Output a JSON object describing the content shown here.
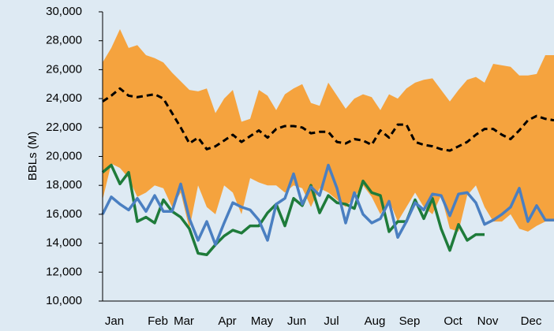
{
  "chart_data": {
    "type": "line",
    "y_label": "BBLs (M)",
    "categories": [
      null,
      "Jan",
      null,
      null,
      null,
      null,
      "Feb",
      null,
      null,
      "Mar",
      null,
      null,
      null,
      null,
      "Apr",
      null,
      null,
      null,
      "May",
      null,
      null,
      null,
      "Jun",
      null,
      null,
      null,
      "Jul",
      null,
      null,
      null,
      null,
      "Aug",
      null,
      null,
      null,
      "Sep",
      null,
      null,
      null,
      null,
      "Oct",
      null,
      null,
      null,
      "Nov",
      null,
      null,
      null,
      null,
      "Dec",
      null,
      null,
      null
    ],
    "band": {
      "color": "#f5a33e",
      "high": [
        26500,
        27500,
        28800,
        27500,
        27700,
        27000,
        26800,
        26500,
        25800,
        25200,
        24600,
        24500,
        24700,
        23000,
        24000,
        24600,
        22400,
        22600,
        24600,
        24200,
        23200,
        24300,
        24700,
        25000,
        23700,
        23500,
        25100,
        24200,
        23300,
        24000,
        24300,
        24100,
        23200,
        24300,
        24000,
        24700,
        25100,
        25300,
        25400,
        24600,
        23800,
        24600,
        25300,
        25500,
        25100,
        26400,
        26300,
        26200,
        25600,
        25600,
        25700,
        27000,
        27000
      ],
      "low": [
        17000,
        19500,
        19200,
        18500,
        17200,
        17500,
        18000,
        17800,
        16500,
        17500,
        15000,
        18000,
        16500,
        16000,
        18000,
        17500,
        16000,
        18500,
        18200,
        18000,
        18000,
        17500,
        18000,
        17800,
        16500,
        17800,
        17500,
        17000,
        16500,
        17200,
        18000,
        17200,
        16000,
        17000,
        15500,
        16500,
        17500,
        16500,
        16000,
        17300,
        15000,
        14800,
        17300,
        18000,
        16500,
        15500,
        15500,
        16000,
        15000,
        14800,
        15200,
        15500,
        15500
      ]
    },
    "series": [
      {
        "color": "#000000",
        "dash": true,
        "values": [
          23800,
          24200,
          24700,
          24200,
          24100,
          24200,
          24300,
          24000,
          23000,
          22000,
          20900,
          21300,
          20500,
          20700,
          21100,
          21500,
          21000,
          21400,
          21800,
          21300,
          21900,
          22100,
          22100,
          22000,
          21600,
          21700,
          21700,
          21000,
          20900,
          21200,
          21100,
          20800,
          21800,
          21300,
          22200,
          22200,
          21000,
          20800,
          20700,
          20500,
          20400,
          20700,
          21000,
          21500,
          21900,
          21900,
          21500,
          21200,
          21800,
          22500,
          22800,
          22600,
          22500
        ]
      },
      {
        "color": "#1e7b3a",
        "dash": false,
        "values": [
          18900,
          19400,
          18100,
          18900,
          15500,
          15800,
          15400,
          17000,
          16200,
          15800,
          15000,
          13300,
          13200,
          13900,
          14500,
          14900,
          14700,
          15200,
          15200,
          16100,
          16700,
          15200,
          17100,
          16600,
          18000,
          16100,
          17300,
          16800,
          16700,
          16400,
          18300,
          17500,
          17300,
          14800,
          15500,
          15500,
          17000,
          15700,
          17100,
          15000,
          13500,
          15300,
          14200,
          14600,
          14600,
          null,
          null,
          null,
          null,
          null,
          null,
          null,
          null
        ]
      },
      {
        "color": "#4a7fc1",
        "dash": false,
        "values": [
          16000,
          17200,
          16700,
          16300,
          17100,
          16200,
          17300,
          16200,
          16200,
          18100,
          15700,
          14200,
          15500,
          13900,
          15400,
          16800,
          16500,
          16300,
          15600,
          14200,
          16700,
          17100,
          18800,
          16700,
          17900,
          17300,
          19400,
          17800,
          15400,
          17500,
          16000,
          15400,
          15700,
          16900,
          14400,
          15500,
          16800,
          16300,
          17400,
          17300,
          15900,
          17400,
          17500,
          16800,
          15300,
          15600,
          16000,
          16500,
          17800,
          15500,
          16600,
          15600,
          15600
        ]
      }
    ],
    "ylim": [
      10000,
      30000
    ],
    "yticks": [
      {
        "value": 10000,
        "label": "10,000"
      },
      {
        "value": 12000,
        "label": "12,000"
      },
      {
        "value": 14000,
        "label": "14,000"
      },
      {
        "value": 16000,
        "label": "16,000"
      },
      {
        "value": 18000,
        "label": "18,000"
      },
      {
        "value": 20000,
        "label": "20,000"
      },
      {
        "value": 22000,
        "label": "22,000"
      },
      {
        "value": 24000,
        "label": "24,000"
      },
      {
        "value": 26000,
        "label": "26,000"
      },
      {
        "value": 28000,
        "label": "28,000"
      },
      {
        "value": 30000,
        "label": "30,000"
      }
    ],
    "grid": false
  }
}
